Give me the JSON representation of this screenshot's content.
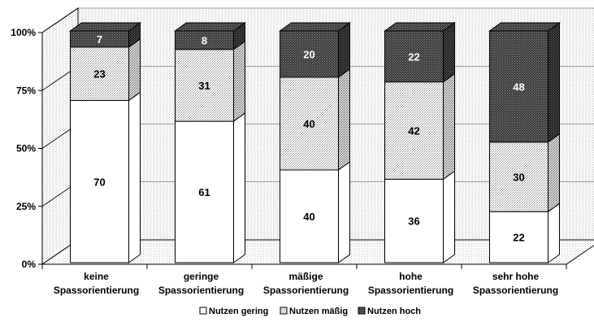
{
  "chart_data": {
    "type": "bar",
    "stacked": true,
    "normalized_percent": true,
    "three_d": true,
    "title": "",
    "xlabel": "",
    "ylabel": "",
    "ylim": [
      0,
      100
    ],
    "yticks": [
      "0%",
      "25%",
      "50%",
      "75%",
      "100%"
    ],
    "categories": [
      [
        "keine",
        "Spassorientierung"
      ],
      [
        "geringe",
        "Spassorientierung"
      ],
      [
        "mäßige",
        "Spassorientierung"
      ],
      [
        "hohe",
        "Spassorientierung"
      ],
      [
        "sehr hohe",
        "Spassorientierung"
      ]
    ],
    "series": [
      {
        "name": "Nutzen gering",
        "values": [
          70,
          61,
          40,
          36,
          22
        ],
        "pattern": "white"
      },
      {
        "name": "Nutzen mäßig",
        "values": [
          23,
          31,
          40,
          42,
          30
        ],
        "pattern": "light-dotted"
      },
      {
        "name": "Nutzen hoch",
        "values": [
          7,
          8,
          20,
          22,
          48
        ],
        "pattern": "dark-dotted"
      }
    ],
    "legend_placement": "bottom",
    "grid": true
  }
}
